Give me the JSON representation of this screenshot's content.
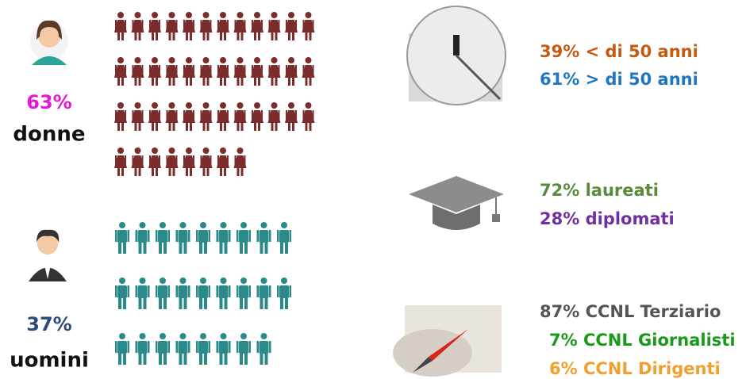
{
  "women": {
    "percent": "63%",
    "label": "donne",
    "icon_rows": [
      12,
      12,
      12,
      8
    ]
  },
  "men": {
    "percent": "37%",
    "label": "uomini",
    "icon_rows": [
      9,
      9,
      8
    ]
  },
  "age": [
    "39% < di 50 anni",
    "61% > di 50 anni"
  ],
  "education": [
    "72% laureati",
    "28% diplomati"
  ],
  "contracts": [
    "87% CCNL Terziario",
    "7% CCNL Giornalisti",
    "6% CCNL Dirigenti"
  ]
}
